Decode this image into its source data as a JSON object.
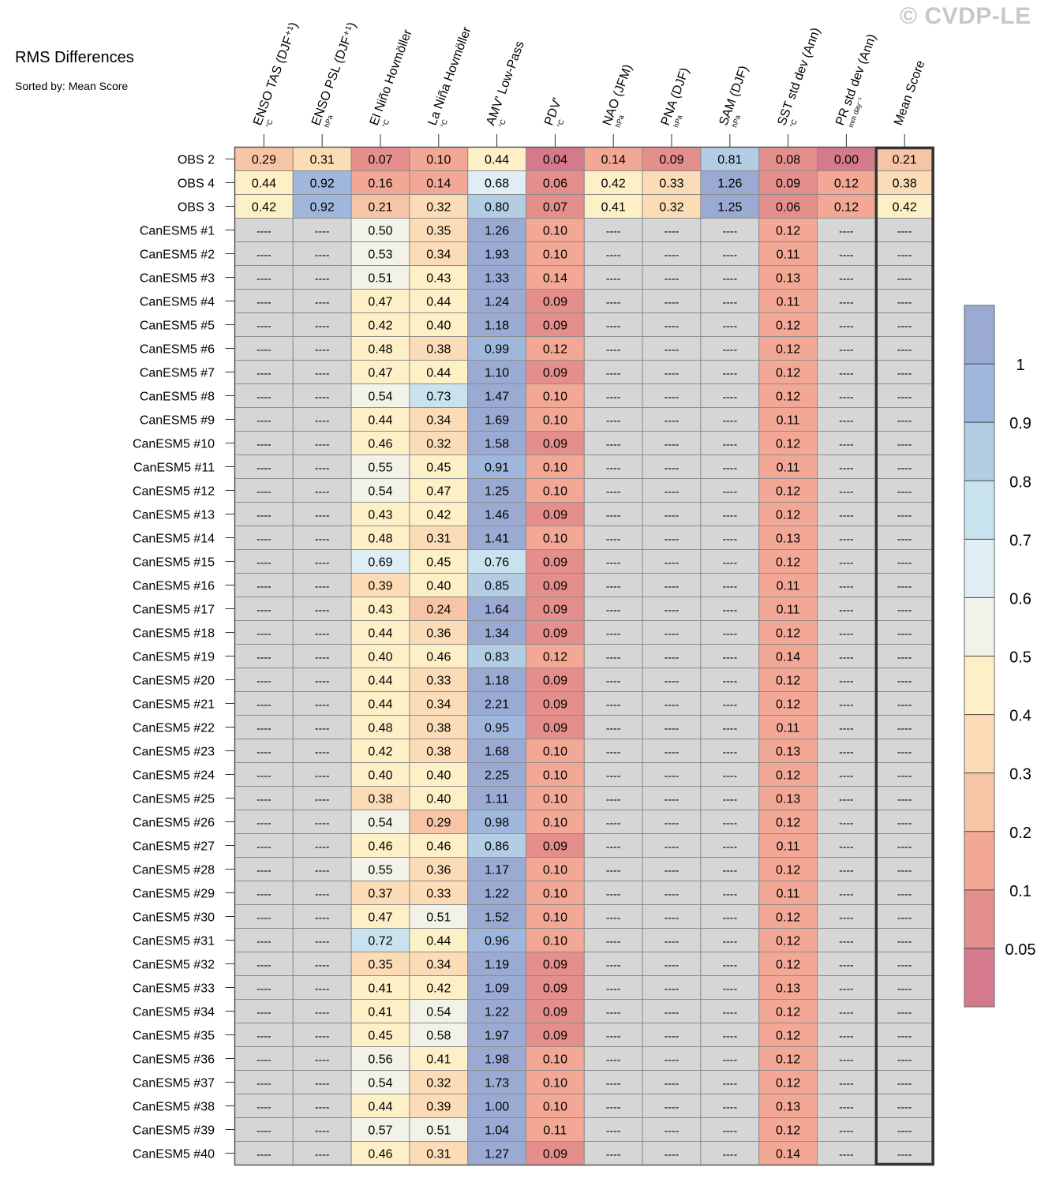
{
  "watermark": "© CVDP-LE",
  "chart_data": {
    "type": "heatmap",
    "title": "RMS Differences",
    "subtitle": "Sorted by: Mean Score",
    "missing_label": "----",
    "columns": [
      {
        "label": "ENSO TAS (DJF⁺¹)",
        "unit": "°C"
      },
      {
        "label": "ENSO PSL (DJF⁺¹)",
        "unit": "hPa"
      },
      {
        "label": "El Niño Hovmöller",
        "unit": "°C"
      },
      {
        "label": "La Niña Hovmöller",
        "unit": "°C"
      },
      {
        "label": "AMV' Low-Pass",
        "unit": "°C"
      },
      {
        "label": "PDV'",
        "unit": "°C"
      },
      {
        "label": "NAO (JFM)",
        "unit": "hPa"
      },
      {
        "label": "PNA (DJF)",
        "unit": "hPa"
      },
      {
        "label": "SAM (DJF)",
        "unit": "hPa"
      },
      {
        "label": "SST std dev (Ann)",
        "unit": "°C"
      },
      {
        "label": "PR std dev (Ann)",
        "unit": "mm day⁻¹"
      },
      {
        "label": "Mean Score",
        "unit": ""
      }
    ],
    "rows": [
      {
        "name": "OBS 2",
        "values": [
          0.29,
          0.31,
          0.07,
          0.1,
          0.44,
          0.04,
          0.14,
          0.09,
          0.81,
          0.08,
          0.0,
          0.21
        ]
      },
      {
        "name": "OBS 4",
        "values": [
          0.44,
          0.92,
          0.16,
          0.14,
          0.68,
          0.06,
          0.42,
          0.33,
          1.26,
          0.09,
          0.12,
          0.38
        ]
      },
      {
        "name": "OBS 3",
        "values": [
          0.42,
          0.92,
          0.21,
          0.32,
          0.8,
          0.07,
          0.41,
          0.32,
          1.25,
          0.06,
          0.12,
          0.42
        ]
      },
      {
        "name": "CanESM5 #1",
        "values": [
          null,
          null,
          0.5,
          0.35,
          1.26,
          0.1,
          null,
          null,
          null,
          0.12,
          null,
          null
        ]
      },
      {
        "name": "CanESM5 #2",
        "values": [
          null,
          null,
          0.53,
          0.34,
          1.93,
          0.1,
          null,
          null,
          null,
          0.11,
          null,
          null
        ]
      },
      {
        "name": "CanESM5 #3",
        "values": [
          null,
          null,
          0.51,
          0.43,
          1.33,
          0.14,
          null,
          null,
          null,
          0.13,
          null,
          null
        ]
      },
      {
        "name": "CanESM5 #4",
        "values": [
          null,
          null,
          0.47,
          0.44,
          1.24,
          0.09,
          null,
          null,
          null,
          0.11,
          null,
          null
        ]
      },
      {
        "name": "CanESM5 #5",
        "values": [
          null,
          null,
          0.42,
          0.4,
          1.18,
          0.09,
          null,
          null,
          null,
          0.12,
          null,
          null
        ]
      },
      {
        "name": "CanESM5 #6",
        "values": [
          null,
          null,
          0.48,
          0.38,
          0.99,
          0.12,
          null,
          null,
          null,
          0.12,
          null,
          null
        ]
      },
      {
        "name": "CanESM5 #7",
        "values": [
          null,
          null,
          0.47,
          0.44,
          1.1,
          0.09,
          null,
          null,
          null,
          0.12,
          null,
          null
        ]
      },
      {
        "name": "CanESM5 #8",
        "values": [
          null,
          null,
          0.54,
          0.73,
          1.47,
          0.1,
          null,
          null,
          null,
          0.12,
          null,
          null
        ]
      },
      {
        "name": "CanESM5 #9",
        "values": [
          null,
          null,
          0.44,
          0.34,
          1.69,
          0.1,
          null,
          null,
          null,
          0.11,
          null,
          null
        ]
      },
      {
        "name": "CanESM5 #10",
        "values": [
          null,
          null,
          0.46,
          0.32,
          1.58,
          0.09,
          null,
          null,
          null,
          0.12,
          null,
          null
        ]
      },
      {
        "name": "CanESM5 #11",
        "values": [
          null,
          null,
          0.55,
          0.45,
          0.91,
          0.1,
          null,
          null,
          null,
          0.11,
          null,
          null
        ]
      },
      {
        "name": "CanESM5 #12",
        "values": [
          null,
          null,
          0.54,
          0.47,
          1.25,
          0.1,
          null,
          null,
          null,
          0.12,
          null,
          null
        ]
      },
      {
        "name": "CanESM5 #13",
        "values": [
          null,
          null,
          0.43,
          0.42,
          1.46,
          0.09,
          null,
          null,
          null,
          0.12,
          null,
          null
        ]
      },
      {
        "name": "CanESM5 #14",
        "values": [
          null,
          null,
          0.48,
          0.31,
          1.41,
          0.1,
          null,
          null,
          null,
          0.13,
          null,
          null
        ]
      },
      {
        "name": "CanESM5 #15",
        "values": [
          null,
          null,
          0.69,
          0.45,
          0.76,
          0.09,
          null,
          null,
          null,
          0.12,
          null,
          null
        ]
      },
      {
        "name": "CanESM5 #16",
        "values": [
          null,
          null,
          0.39,
          0.4,
          0.85,
          0.09,
          null,
          null,
          null,
          0.11,
          null,
          null
        ]
      },
      {
        "name": "CanESM5 #17",
        "values": [
          null,
          null,
          0.43,
          0.24,
          1.64,
          0.09,
          null,
          null,
          null,
          0.11,
          null,
          null
        ]
      },
      {
        "name": "CanESM5 #18",
        "values": [
          null,
          null,
          0.44,
          0.36,
          1.34,
          0.09,
          null,
          null,
          null,
          0.12,
          null,
          null
        ]
      },
      {
        "name": "CanESM5 #19",
        "values": [
          null,
          null,
          0.4,
          0.46,
          0.83,
          0.12,
          null,
          null,
          null,
          0.14,
          null,
          null
        ]
      },
      {
        "name": "CanESM5 #20",
        "values": [
          null,
          null,
          0.44,
          0.33,
          1.18,
          0.09,
          null,
          null,
          null,
          0.12,
          null,
          null
        ]
      },
      {
        "name": "CanESM5 #21",
        "values": [
          null,
          null,
          0.44,
          0.34,
          2.21,
          0.09,
          null,
          null,
          null,
          0.12,
          null,
          null
        ]
      },
      {
        "name": "CanESM5 #22",
        "values": [
          null,
          null,
          0.48,
          0.38,
          0.95,
          0.09,
          null,
          null,
          null,
          0.11,
          null,
          null
        ]
      },
      {
        "name": "CanESM5 #23",
        "values": [
          null,
          null,
          0.42,
          0.38,
          1.68,
          0.1,
          null,
          null,
          null,
          0.13,
          null,
          null
        ]
      },
      {
        "name": "CanESM5 #24",
        "values": [
          null,
          null,
          0.4,
          0.4,
          2.25,
          0.1,
          null,
          null,
          null,
          0.12,
          null,
          null
        ]
      },
      {
        "name": "CanESM5 #25",
        "values": [
          null,
          null,
          0.38,
          0.4,
          1.11,
          0.1,
          null,
          null,
          null,
          0.13,
          null,
          null
        ]
      },
      {
        "name": "CanESM5 #26",
        "values": [
          null,
          null,
          0.54,
          0.29,
          0.98,
          0.1,
          null,
          null,
          null,
          0.12,
          null,
          null
        ]
      },
      {
        "name": "CanESM5 #27",
        "values": [
          null,
          null,
          0.46,
          0.46,
          0.86,
          0.09,
          null,
          null,
          null,
          0.11,
          null,
          null
        ]
      },
      {
        "name": "CanESM5 #28",
        "values": [
          null,
          null,
          0.55,
          0.36,
          1.17,
          0.1,
          null,
          null,
          null,
          0.12,
          null,
          null
        ]
      },
      {
        "name": "CanESM5 #29",
        "values": [
          null,
          null,
          0.37,
          0.33,
          1.22,
          0.1,
          null,
          null,
          null,
          0.11,
          null,
          null
        ]
      },
      {
        "name": "CanESM5 #30",
        "values": [
          null,
          null,
          0.47,
          0.51,
          1.52,
          0.1,
          null,
          null,
          null,
          0.12,
          null,
          null
        ]
      },
      {
        "name": "CanESM5 #31",
        "values": [
          null,
          null,
          0.72,
          0.44,
          0.96,
          0.1,
          null,
          null,
          null,
          0.12,
          null,
          null
        ]
      },
      {
        "name": "CanESM5 #32",
        "values": [
          null,
          null,
          0.35,
          0.34,
          1.19,
          0.09,
          null,
          null,
          null,
          0.12,
          null,
          null
        ]
      },
      {
        "name": "CanESM5 #33",
        "values": [
          null,
          null,
          0.41,
          0.42,
          1.09,
          0.09,
          null,
          null,
          null,
          0.13,
          null,
          null
        ]
      },
      {
        "name": "CanESM5 #34",
        "values": [
          null,
          null,
          0.41,
          0.54,
          1.22,
          0.09,
          null,
          null,
          null,
          0.12,
          null,
          null
        ]
      },
      {
        "name": "CanESM5 #35",
        "values": [
          null,
          null,
          0.45,
          0.58,
          1.97,
          0.09,
          null,
          null,
          null,
          0.12,
          null,
          null
        ]
      },
      {
        "name": "CanESM5 #36",
        "values": [
          null,
          null,
          0.56,
          0.41,
          1.98,
          0.1,
          null,
          null,
          null,
          0.12,
          null,
          null
        ]
      },
      {
        "name": "CanESM5 #37",
        "values": [
          null,
          null,
          0.54,
          0.32,
          1.73,
          0.1,
          null,
          null,
          null,
          0.12,
          null,
          null
        ]
      },
      {
        "name": "CanESM5 #38",
        "values": [
          null,
          null,
          0.44,
          0.39,
          1.0,
          0.1,
          null,
          null,
          null,
          0.13,
          null,
          null
        ]
      },
      {
        "name": "CanESM5 #39",
        "values": [
          null,
          null,
          0.57,
          0.51,
          1.04,
          0.11,
          null,
          null,
          null,
          0.12,
          null,
          null
        ]
      },
      {
        "name": "CanESM5 #40",
        "values": [
          null,
          null,
          0.46,
          0.31,
          1.27,
          0.09,
          null,
          null,
          null,
          0.14,
          null,
          null
        ]
      }
    ],
    "colorbar": {
      "levels": [
        0.05,
        0.1,
        0.2,
        0.3,
        0.4,
        0.5,
        0.6,
        0.7,
        0.8,
        0.9,
        1
      ],
      "labels": [
        "0.05",
        "0.1",
        "0.2",
        "0.3",
        "0.4",
        "0.5",
        "0.6",
        "0.7",
        "0.8",
        "0.9",
        "1"
      ],
      "colors": [
        "#d47a8c",
        "#e48f8c",
        "#f3a896",
        "#f8c4a6",
        "#fcdcb6",
        "#fdefc6",
        "#f2f2e8",
        "#dfedf4",
        "#c9e3ee",
        "#b3cde4",
        "#9fb7dd",
        "#9aaad2"
      ],
      "missing_color": "#d6d6d6",
      "gridline_color": "#8c8c8c",
      "highlight_column": "Mean Score"
    }
  }
}
